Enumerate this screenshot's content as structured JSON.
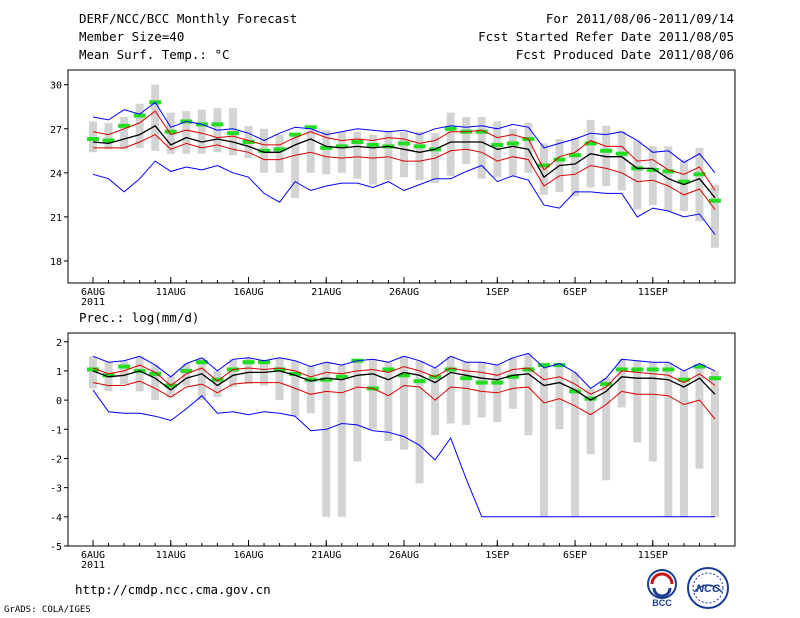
{
  "header": {
    "title": "DERF/NCC/BCC Monthly Forecast",
    "member_size": "Member Size=40",
    "variable": "Mean Surf. Temp.: °C",
    "period": "For 2011/08/06-2011/09/14",
    "fcst_started": "Fcst Started Refer Date 2011/08/05",
    "fcst_produced": "Fcst Produced Date 2011/08/06"
  },
  "footer": {
    "url": "http://cmdp.ncc.cma.gov.cn",
    "credit": "GrADS: COLA/IGES",
    "logo_left_text": "BCC",
    "logo_right_text": "NCC"
  },
  "colors": {
    "ensemble_max_min": "#0000ff",
    "spread": "#dd0000",
    "mean": "#000000",
    "median": "#22dd22",
    "range_bar": "#d3d3d3"
  },
  "chart_data": [
    {
      "type": "line",
      "name": "temperature",
      "ylabel": "Mean Surf. Temp.: °C",
      "ylim": [
        16.5,
        31
      ],
      "yticks": [
        18,
        21,
        24,
        27,
        30
      ],
      "xtick_labels": [
        "6AUG",
        "11AUG",
        "16AUG",
        "21AUG",
        "26AUG",
        "1SEP",
        "6SEP",
        "11SEP"
      ],
      "xtick_days": [
        1,
        6,
        11,
        16,
        21,
        27,
        32,
        37
      ],
      "year_label": "2011",
      "days": 41,
      "series": [
        {
          "name": "max",
          "color": "#0000ff",
          "values": [
            27.8,
            27.6,
            28.3,
            28.0,
            28.8,
            27.1,
            27.5,
            27.3,
            26.9,
            27.0,
            26.7,
            26.2,
            26.7,
            27.1,
            27.0,
            26.6,
            26.8,
            27.0,
            26.9,
            26.8,
            26.9,
            26.6,
            27.0,
            27.2,
            27.1,
            27.2,
            27.0,
            27.3,
            27.1,
            25.7,
            26.0,
            26.3,
            26.7,
            26.6,
            26.8,
            26.2,
            25.4,
            25.5,
            24.7,
            25.3,
            24.0
          ]
        },
        {
          "name": "upper",
          "color": "#dd0000",
          "values": [
            26.8,
            26.6,
            27.0,
            27.4,
            28.2,
            26.6,
            26.9,
            26.7,
            26.4,
            26.5,
            26.2,
            25.9,
            25.9,
            26.4,
            26.8,
            26.4,
            26.2,
            26.3,
            26.2,
            26.4,
            26.3,
            26.0,
            26.2,
            26.8,
            26.8,
            26.9,
            26.4,
            26.6,
            26.3,
            24.2,
            25.1,
            25.4,
            26.2,
            25.8,
            25.8,
            24.8,
            24.9,
            24.2,
            23.9,
            24.4,
            22.8
          ]
        },
        {
          "name": "mean",
          "color": "#000000",
          "values": [
            26.1,
            26.0,
            26.3,
            26.6,
            27.2,
            25.9,
            26.4,
            26.1,
            26.3,
            26.1,
            25.8,
            25.4,
            25.4,
            25.9,
            26.3,
            25.8,
            25.7,
            25.8,
            25.7,
            25.8,
            25.6,
            25.4,
            25.6,
            26.1,
            26.1,
            26.1,
            25.6,
            25.8,
            25.6,
            23.7,
            24.5,
            24.6,
            25.3,
            25.1,
            25.1,
            24.3,
            24.3,
            23.6,
            23.2,
            23.6,
            22.3
          ]
        },
        {
          "name": "lower",
          "color": "#dd0000",
          "values": [
            25.7,
            25.7,
            25.7,
            26.1,
            26.6,
            25.6,
            26.0,
            25.7,
            25.9,
            25.6,
            25.4,
            24.9,
            24.9,
            25.2,
            25.4,
            25.1,
            25.0,
            25.1,
            25.0,
            25.1,
            24.8,
            24.8,
            25.0,
            25.5,
            25.6,
            25.4,
            24.8,
            25.1,
            24.9,
            23.1,
            23.8,
            23.9,
            24.5,
            24.3,
            24.0,
            23.4,
            23.5,
            23.1,
            22.5,
            22.9,
            21.5
          ]
        },
        {
          "name": "min",
          "color": "#0000ff",
          "values": [
            23.9,
            23.6,
            22.7,
            23.6,
            24.8,
            24.1,
            24.4,
            24.2,
            24.5,
            24.0,
            23.7,
            22.6,
            22.0,
            23.4,
            22.8,
            23.1,
            23.3,
            23.3,
            23.0,
            23.4,
            22.8,
            23.2,
            23.6,
            23.6,
            24.1,
            24.5,
            23.4,
            23.8,
            23.5,
            21.8,
            21.6,
            22.7,
            22.7,
            22.6,
            22.6,
            21.0,
            21.6,
            21.4,
            21.0,
            21.2,
            19.8
          ]
        }
      ],
      "median": [
        26.3,
        26.2,
        27.2,
        27.9,
        28.8,
        26.8,
        27.5,
        27.3,
        27.3,
        26.7,
        26.1,
        25.5,
        25.6,
        26.6,
        27.1,
        25.7,
        25.8,
        26.1,
        25.9,
        25.8,
        26.0,
        25.8,
        25.6,
        27.0,
        26.8,
        26.8,
        25.9,
        26.0,
        26.3,
        24.5,
        24.9,
        25.2,
        26.0,
        25.5,
        25.3,
        24.3,
        24.2,
        24.1,
        23.4,
        23.9,
        22.1
      ],
      "range_low": [
        25.4,
        25.6,
        25.6,
        25.7,
        25.5,
        25.3,
        25.3,
        25.3,
        25.4,
        25.2,
        25.0,
        24.0,
        24.0,
        22.3,
        24.0,
        23.9,
        24.0,
        23.6,
        23.2,
        23.5,
        23.7,
        23.5,
        23.3,
        23.8,
        24.6,
        23.6,
        23.7,
        23.8,
        24.0,
        22.5,
        22.7,
        22.4,
        23.0,
        23.1,
        22.8,
        21.5,
        21.8,
        21.4,
        21.4,
        20.7,
        18.9
      ],
      "range_high": [
        27.5,
        27.4,
        27.8,
        28.7,
        30.0,
        28.1,
        28.2,
        28.3,
        28.4,
        28.4,
        27.2,
        27.0,
        26.6,
        26.6,
        26.9,
        26.9,
        26.8,
        26.8,
        26.6,
        26.8,
        26.8,
        26.8,
        26.7,
        28.1,
        27.8,
        27.8,
        27.5,
        27.0,
        27.4,
        26.0,
        26.3,
        26.4,
        27.6,
        27.2,
        26.8,
        26.2,
        25.8,
        25.8,
        24.9,
        25.7,
        23.2
      ]
    },
    {
      "type": "line",
      "name": "precipitation",
      "ylabel": "Prec.: log(mm/d)",
      "ylim": [
        -5,
        2.3
      ],
      "yticks": [
        -5,
        -4,
        -3,
        -2,
        -1,
        0,
        1,
        2
      ],
      "xtick_labels": [
        "6AUG",
        "11AUG",
        "16AUG",
        "21AUG",
        "26AUG",
        "1SEP",
        "6SEP",
        "11SEP"
      ],
      "xtick_days": [
        1,
        6,
        11,
        16,
        21,
        27,
        32,
        37
      ],
      "year_label": "2011",
      "days": 41,
      "series": [
        {
          "name": "max",
          "color": "#0000ff",
          "values": [
            1.5,
            1.3,
            1.35,
            1.5,
            1.2,
            0.8,
            1.25,
            1.45,
            1.0,
            1.4,
            1.45,
            1.35,
            1.45,
            1.35,
            1.15,
            1.3,
            1.2,
            1.35,
            1.4,
            1.3,
            1.5,
            1.35,
            1.1,
            1.5,
            1.3,
            1.3,
            1.2,
            1.45,
            1.6,
            1.1,
            1.25,
            0.95,
            0.4,
            0.75,
            1.4,
            1.35,
            1.3,
            1.3,
            1.0,
            1.25,
            1.0
          ]
        },
        {
          "name": "upper",
          "color": "#dd0000",
          "values": [
            1.1,
            0.9,
            1.0,
            1.2,
            0.95,
            0.5,
            0.9,
            1.1,
            0.65,
            1.05,
            1.1,
            1.05,
            1.1,
            1.0,
            0.8,
            0.95,
            0.9,
            1.0,
            1.05,
            0.95,
            1.15,
            1.0,
            0.8,
            1.1,
            1.0,
            0.95,
            0.85,
            1.05,
            1.1,
            0.7,
            0.8,
            0.55,
            0.2,
            0.45,
            1.0,
            0.95,
            0.9,
            0.85,
            0.6,
            0.9,
            0.5
          ]
        },
        {
          "name": "mean",
          "color": "#000000",
          "values": [
            1.0,
            0.8,
            0.85,
            1.0,
            0.75,
            0.35,
            0.75,
            0.9,
            0.5,
            0.85,
            0.95,
            0.95,
            1.0,
            0.85,
            0.65,
            0.75,
            0.7,
            0.85,
            0.9,
            0.7,
            0.95,
            0.85,
            0.6,
            0.95,
            0.85,
            0.75,
            0.7,
            0.85,
            0.9,
            0.5,
            0.6,
            0.35,
            0.0,
            0.3,
            0.8,
            0.75,
            0.75,
            0.7,
            0.45,
            0.75,
            0.2
          ]
        },
        {
          "name": "lower",
          "color": "#dd0000",
          "values": [
            0.6,
            0.5,
            0.5,
            0.65,
            0.4,
            0.1,
            0.45,
            0.55,
            0.25,
            0.55,
            0.6,
            0.6,
            0.6,
            0.4,
            0.2,
            0.3,
            0.25,
            0.45,
            0.4,
            0.15,
            0.5,
            0.45,
            0.0,
            0.45,
            0.4,
            0.3,
            0.25,
            0.4,
            0.45,
            -0.1,
            0.05,
            -0.2,
            -0.5,
            -0.15,
            0.3,
            0.2,
            0.2,
            0.15,
            -0.15,
            0.0,
            -0.65
          ]
        },
        {
          "name": "min",
          "color": "#0000ff",
          "values": [
            0.35,
            -0.4,
            -0.45,
            -0.45,
            -0.55,
            -0.7,
            -0.3,
            0.15,
            -0.45,
            -0.4,
            -0.5,
            -0.4,
            -0.45,
            -0.55,
            -1.05,
            -1.0,
            -0.8,
            -0.85,
            -1.05,
            -1.1,
            -1.25,
            -1.55,
            -2.05,
            -1.3,
            -2.7,
            -4.0,
            -4.0,
            -4.0,
            -4.0,
            -4.0,
            -4.0,
            -4.0,
            -4.0,
            -4.0,
            -4.0,
            -4.0,
            -4.0,
            -4.0,
            -4.0,
            -4.0,
            -4.0
          ]
        }
      ],
      "median": [
        1.05,
        0.85,
        1.15,
        1.0,
        0.9,
        0.5,
        1.0,
        1.3,
        0.7,
        1.05,
        1.3,
        1.3,
        1.05,
        0.9,
        0.7,
        0.7,
        0.8,
        1.35,
        0.4,
        1.05,
        0.85,
        0.65,
        0.8,
        1.05,
        0.75,
        0.6,
        0.6,
        0.8,
        1.05,
        1.2,
        1.2,
        0.3,
        0.05,
        0.55,
        1.05,
        1.05,
        1.05,
        1.05,
        0.7,
        1.15,
        0.75
      ],
      "range_low": [
        0.4,
        0.3,
        0.55,
        0.3,
        0.0,
        0.1,
        0.5,
        0.0,
        0.1,
        0.45,
        0.55,
        0.5,
        0.0,
        -0.55,
        -0.45,
        -4.0,
        -4.0,
        -2.1,
        -1.0,
        -1.4,
        -1.7,
        -2.85,
        -1.2,
        -0.8,
        -0.85,
        -0.6,
        -0.75,
        -0.3,
        -1.2,
        -4.0,
        -1.0,
        -4.0,
        -1.85,
        -2.75,
        -0.25,
        -1.45,
        -2.1,
        -4.0,
        -4.0,
        -2.35,
        -4.0
      ]
    }
  ]
}
